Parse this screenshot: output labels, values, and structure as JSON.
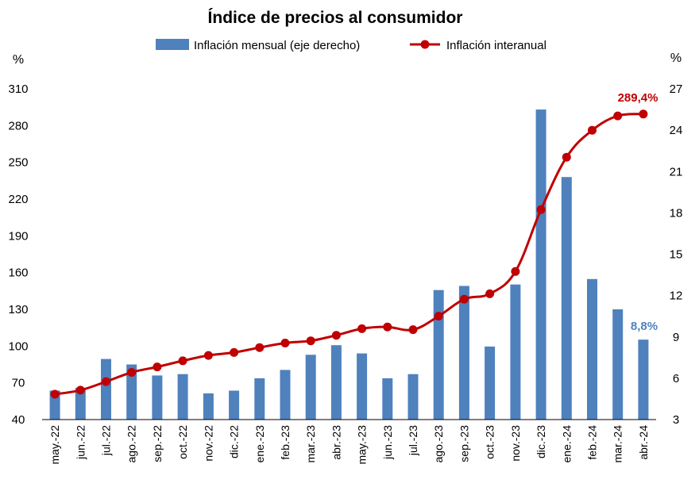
{
  "chart_data": {
    "type": "bar",
    "title": "Índice de precios al consumidor",
    "categories": [
      "may.-22",
      "jun.-22",
      "jul.-22",
      "ago.-22",
      "sep.-22",
      "oct.-22",
      "nov.-22",
      "dic.-22",
      "ene.-23",
      "feb.-23",
      "mar.-23",
      "abr.-23",
      "may.-23",
      "jun.-23",
      "jul.-23",
      "ago.-23",
      "sep.-23",
      "oct.-23",
      "nov.-23",
      "dic.-23",
      "ene.-24",
      "feb.-24",
      "mar.-24",
      "abr.-24"
    ],
    "left_axis": {
      "unit": "%",
      "ylim": [
        40,
        310
      ],
      "ticks": [
        40,
        70,
        100,
        130,
        160,
        190,
        220,
        250,
        280,
        310
      ]
    },
    "right_axis": {
      "unit": "%",
      "ylim": [
        3,
        27
      ],
      "ticks": [
        3,
        6,
        9,
        12,
        15,
        18,
        21,
        24,
        27
      ]
    },
    "series": [
      {
        "name": "Inflación mensual (eje derecho)",
        "type": "bar",
        "axis": "right",
        "color": "#4F81BD",
        "values": [
          5.1,
          5.3,
          7.4,
          7.0,
          6.2,
          6.3,
          4.9,
          5.1,
          6.0,
          6.6,
          7.7,
          8.4,
          7.8,
          6.0,
          6.3,
          12.4,
          12.7,
          8.3,
          12.8,
          25.5,
          20.6,
          13.2,
          11.0,
          8.8
        ]
      },
      {
        "name": "Inflación interanual",
        "type": "line",
        "axis": "left",
        "color": "#C00000",
        "values": [
          60.7,
          64.0,
          71.0,
          78.5,
          83.0,
          88.0,
          92.4,
          94.8,
          98.8,
          102.5,
          104.3,
          108.8,
          114.2,
          115.6,
          113.4,
          124.4,
          138.3,
          142.7,
          160.9,
          211.4,
          254.2,
          276.2,
          287.9,
          289.4
        ]
      }
    ],
    "annotations": [
      {
        "text": "289,4%",
        "series": "Inflación interanual",
        "color": "#C00000"
      },
      {
        "text": "8,8%",
        "series": "Inflación mensual (eje derecho)",
        "color": "#4F81BD"
      }
    ],
    "legend": "top-center",
    "grid": false
  }
}
